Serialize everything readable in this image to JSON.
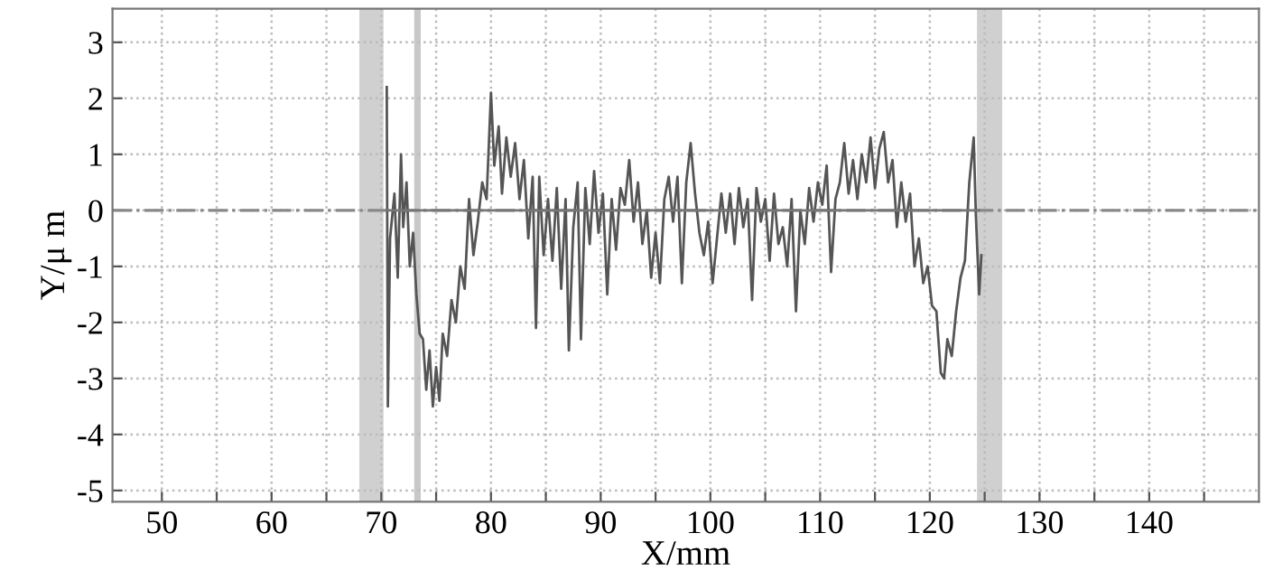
{
  "chart_data": {
    "type": "line",
    "xlabel": "X/mm",
    "ylabel": "Y/μ m",
    "xlim": [
      45.5,
      150
    ],
    "ylim": [
      -5.2,
      3.6
    ],
    "xticks": [
      50,
      {
        "value": 55,
        "label": null
      },
      60,
      {
        "value": 65,
        "label": null
      },
      70,
      {
        "value": 75,
        "label": null
      },
      80,
      {
        "value": 85,
        "label": null
      },
      90,
      {
        "value": 95,
        "label": null
      },
      100,
      {
        "value": 105,
        "label": null
      },
      110,
      {
        "value": 115,
        "label": null
      },
      120,
      {
        "value": 125,
        "label": null
      },
      130,
      {
        "value": 135,
        "label": null
      },
      140,
      {
        "value": 145,
        "label": null
      }
    ],
    "yticks": [
      -5,
      -4,
      -3,
      -2,
      -1,
      0,
      1,
      2,
      3
    ],
    "grid": true,
    "legend": false,
    "ref_lines": [
      {
        "axis": "y",
        "value": 0,
        "color": "#888888",
        "line_style": "dashdot"
      }
    ],
    "bands": [
      {
        "axis": "x",
        "from": 68.0,
        "to": 70.2,
        "color": "#d0d0d0"
      },
      {
        "axis": "x",
        "from": 73.0,
        "to": 73.6,
        "color": "#c8c8c8"
      },
      {
        "axis": "x",
        "from": 124.3,
        "to": 126.6,
        "color": "#d0d0d0"
      }
    ],
    "series": [
      {
        "color": "#555555",
        "x": [
          70.5,
          70.6,
          70.8,
          71.2,
          71.5,
          71.8,
          72.0,
          72.3,
          72.6,
          72.9,
          73.2,
          73.5,
          73.8,
          74.1,
          74.4,
          74.7,
          75.0,
          75.3,
          75.6,
          76.0,
          76.4,
          76.8,
          77.2,
          77.6,
          78.0,
          78.4,
          78.8,
          79.2,
          79.6,
          80.0,
          80.3,
          80.7,
          81.0,
          81.4,
          81.8,
          82.2,
          82.6,
          83.0,
          83.4,
          83.8,
          84.1,
          84.4,
          84.8,
          85.2,
          85.6,
          86.0,
          86.4,
          86.8,
          87.1,
          87.5,
          87.9,
          88.2,
          88.6,
          89.0,
          89.4,
          89.8,
          90.2,
          90.6,
          91.0,
          91.4,
          91.8,
          92.2,
          92.6,
          93.0,
          93.4,
          93.8,
          94.2,
          94.6,
          95.0,
          95.4,
          95.8,
          96.2,
          96.6,
          97.0,
          97.4,
          97.8,
          98.2,
          98.6,
          99.0,
          99.4,
          99.8,
          100.2,
          100.6,
          101.0,
          101.4,
          101.8,
          102.2,
          102.6,
          103.0,
          103.4,
          103.8,
          104.2,
          104.6,
          105.0,
          105.4,
          105.8,
          106.2,
          106.6,
          107.0,
          107.4,
          107.8,
          108.2,
          108.6,
          109.0,
          109.4,
          109.8,
          110.2,
          110.6,
          111.0,
          111.4,
          111.8,
          112.2,
          112.6,
          113.0,
          113.4,
          113.8,
          114.2,
          114.6,
          115.0,
          115.4,
          115.8,
          116.2,
          116.6,
          117.0,
          117.4,
          117.8,
          118.2,
          118.6,
          119.0,
          119.4,
          119.8,
          120.2,
          120.6,
          121.0,
          121.3,
          121.6,
          122.0,
          122.4,
          122.8,
          123.2,
          123.6,
          124.0,
          124.2,
          124.5,
          124.7
        ],
        "values": [
          2.2,
          -3.5,
          -0.5,
          0.3,
          -1.2,
          1.0,
          -0.3,
          0.5,
          -1.0,
          -0.4,
          -1.5,
          -2.2,
          -2.3,
          -3.2,
          -2.5,
          -3.5,
          -2.8,
          -3.4,
          -2.2,
          -2.6,
          -1.6,
          -2.0,
          -1.0,
          -1.4,
          0.2,
          -0.8,
          -0.2,
          0.5,
          0.2,
          2.1,
          0.8,
          1.5,
          0.3,
          1.3,
          0.6,
          1.2,
          0.2,
          0.9,
          -0.5,
          0.6,
          -2.1,
          0.6,
          -0.8,
          0.2,
          -0.9,
          0.4,
          -1.4,
          0.2,
          -2.5,
          -0.3,
          0.5,
          -2.3,
          0.4,
          -0.6,
          0.7,
          -0.4,
          0.3,
          -1.5,
          0.2,
          -0.7,
          0.4,
          0.1,
          0.9,
          -0.2,
          0.5,
          -0.6,
          0.0,
          -1.2,
          -0.4,
          -1.3,
          0.2,
          0.6,
          -0.2,
          0.6,
          -1.3,
          0.5,
          1.2,
          0.3,
          -0.4,
          -0.8,
          -0.2,
          -1.3,
          -0.5,
          0.3,
          -0.4,
          0.3,
          -0.6,
          0.4,
          -0.3,
          0.2,
          -1.6,
          0.4,
          -0.2,
          0.2,
          -0.9,
          0.3,
          -0.6,
          -0.3,
          -1.0,
          0.2,
          -1.8,
          0.0,
          -0.6,
          0.4,
          -0.2,
          0.5,
          0.1,
          0.8,
          -1.1,
          0.2,
          0.5,
          1.2,
          0.3,
          0.9,
          0.2,
          1.0,
          0.5,
          1.3,
          0.4,
          1.1,
          1.4,
          0.5,
          0.9,
          -0.3,
          0.5,
          -0.2,
          0.3,
          -1.0,
          -0.5,
          -1.3,
          -1.0,
          -1.7,
          -1.8,
          -2.9,
          -3.0,
          -2.3,
          -2.6,
          -1.8,
          -1.2,
          -0.9,
          0.5,
          1.3,
          -0.1,
          -1.5,
          -0.8
        ]
      },
      {
        "color": "#777777",
        "x": [
          70.5,
          124.5
        ],
        "values": [
          0,
          0
        ]
      }
    ]
  }
}
